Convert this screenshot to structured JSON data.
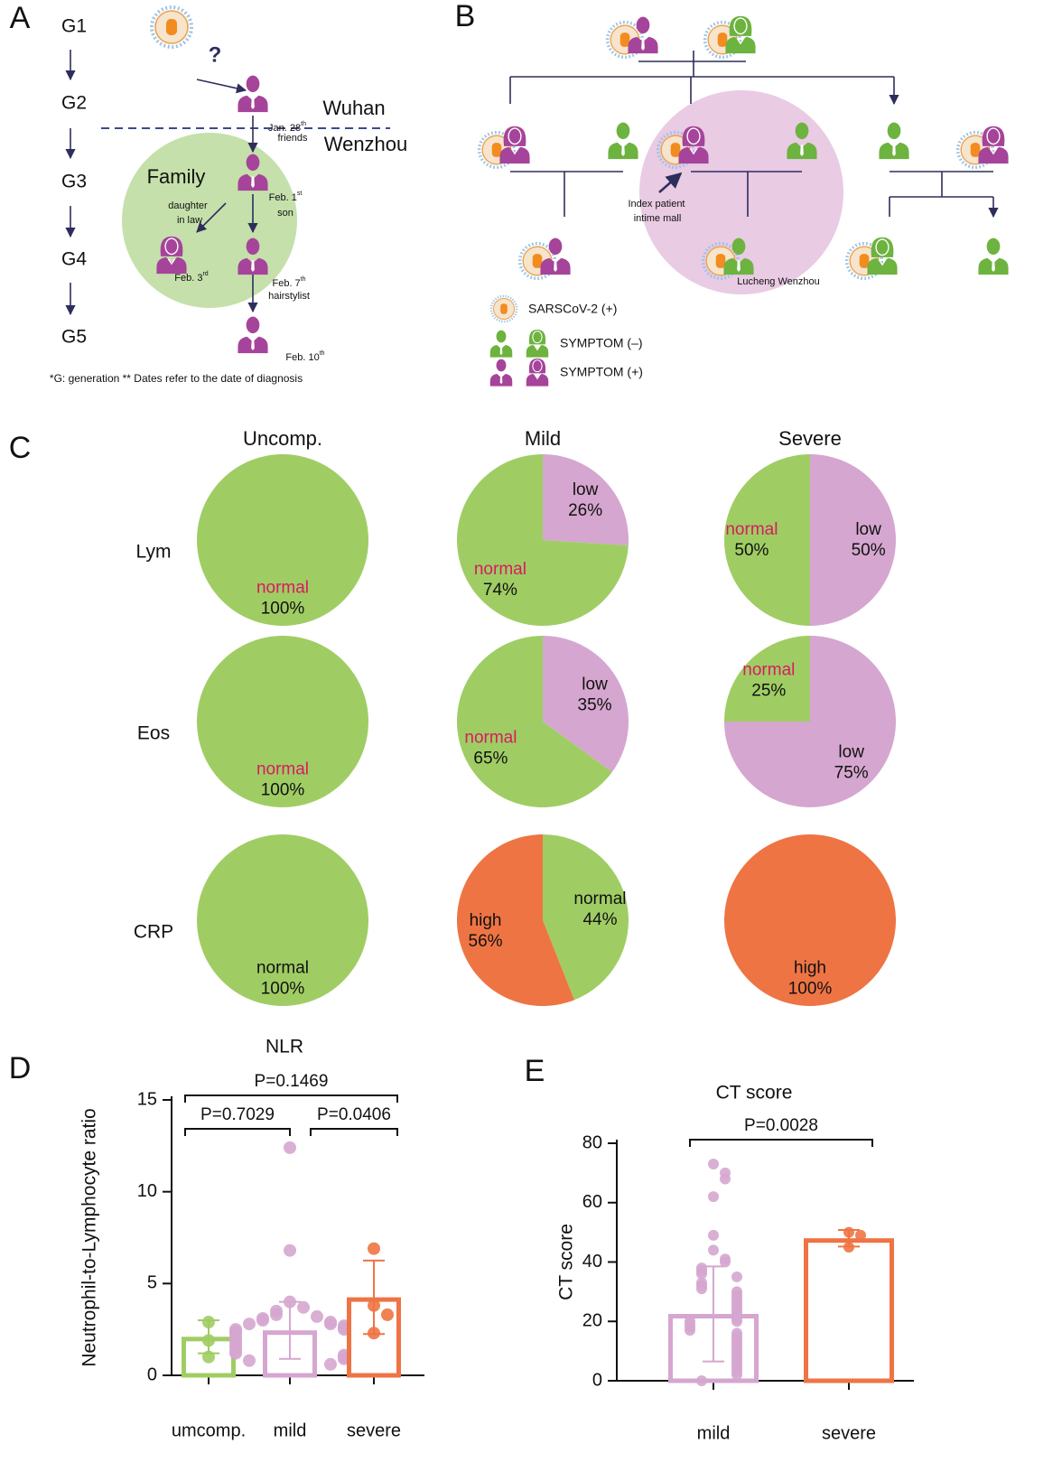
{
  "panel_a": {
    "label": "A",
    "generations": [
      "G1",
      "G2",
      "G3",
      "G4",
      "G5"
    ],
    "question": "?",
    "places": [
      "Wuhan",
      "Wenzhou"
    ],
    "family": "Family",
    "cases": [
      {
        "date": "Jan. 28",
        "sup": "th",
        "note": "friends"
      },
      {
        "date": "Feb. 1",
        "sup": "st",
        "note": "son"
      },
      {
        "date": "Feb. 3",
        "sup": "rd"
      },
      {
        "date": "Feb. 7",
        "sup": "th",
        "note": "hairstylist"
      },
      {
        "date": "Feb. 10",
        "sup": "th"
      }
    ],
    "relation": [
      "daughter",
      "in law"
    ],
    "footnote": "*G: generation ** Dates refer to the date of diagnosis"
  },
  "panel_b": {
    "label": "B",
    "index_patient": [
      "Index patient",
      "intime mall"
    ],
    "location": "Lucheng Wenzhou",
    "legend": [
      "SARSCoV-2 (+)",
      "SYMPTOM (–)",
      "SYMPTOM (+)"
    ]
  },
  "panel_c": {
    "label": "C",
    "columns": [
      "Uncomp.",
      "Mild",
      "Severe"
    ],
    "rows": [
      "Lym",
      "Eos",
      "CRP"
    ]
  },
  "chart_data": [
    {
      "type": "pie",
      "categories": [
        "normal"
      ],
      "values": [
        100
      ],
      "value_labels": [
        "100%"
      ],
      "colors": [
        "#9fcd64"
      ],
      "label_colors": [
        "#d81b60"
      ]
    },
    {
      "type": "pie",
      "categories": [
        "low",
        "normal"
      ],
      "values": [
        26,
        74
      ],
      "value_labels": [
        "26%",
        "74%"
      ],
      "colors": [
        "#d5a6cf",
        "#9fcd64"
      ],
      "label_colors": [
        "#111111",
        "#d81b60"
      ]
    },
    {
      "type": "pie",
      "categories": [
        "low",
        "normal"
      ],
      "values": [
        50,
        50
      ],
      "value_labels": [
        "50%",
        "50%"
      ],
      "colors": [
        "#d5a6cf",
        "#9fcd64"
      ],
      "label_colors": [
        "#111111",
        "#d81b60"
      ]
    },
    {
      "type": "pie",
      "categories": [
        "normal"
      ],
      "values": [
        100
      ],
      "value_labels": [
        "100%"
      ],
      "colors": [
        "#9fcd64"
      ],
      "label_colors": [
        "#d81b60"
      ]
    },
    {
      "type": "pie",
      "categories": [
        "low",
        "normal"
      ],
      "values": [
        35,
        65
      ],
      "value_labels": [
        "35%",
        "65%"
      ],
      "colors": [
        "#d5a6cf",
        "#9fcd64"
      ],
      "label_colors": [
        "#111111",
        "#d81b60"
      ]
    },
    {
      "type": "pie",
      "categories": [
        "low",
        "normal"
      ],
      "values": [
        75,
        25
      ],
      "value_labels": [
        "75%",
        "25%"
      ],
      "colors": [
        "#d5a6cf",
        "#9fcd64"
      ],
      "label_colors": [
        "#111111",
        "#d81b60"
      ]
    },
    {
      "type": "pie",
      "categories": [
        "normal"
      ],
      "values": [
        100
      ],
      "value_labels": [
        "100%"
      ],
      "colors": [
        "#9fcd64"
      ],
      "label_colors": [
        "#111111"
      ]
    },
    {
      "type": "pie",
      "categories": [
        "normal",
        "high"
      ],
      "values": [
        44,
        56
      ],
      "value_labels": [
        "44%",
        "56%"
      ],
      "colors": [
        "#9fcd64",
        "#ee7444"
      ],
      "label_colors": [
        "#111111",
        "#111111"
      ]
    },
    {
      "type": "pie",
      "categories": [
        "high"
      ],
      "values": [
        100
      ],
      "value_labels": [
        "100%"
      ],
      "colors": [
        "#ee7444"
      ],
      "label_colors": [
        "#111111"
      ]
    },
    {
      "type": "bar",
      "panel": "D",
      "title": "NLR",
      "y_label": "Neutrophil-to-Lymphocyte ratio",
      "categories": [
        "umcomp.",
        "mild",
        "severe"
      ],
      "values": [
        2.1,
        2.45,
        4.25
      ],
      "errors": [
        0.9,
        1.55,
        2.0
      ],
      "colors": [
        "#9fcd64",
        "#d5a6cf",
        "#ee7444"
      ],
      "points": [
        [
          2.9,
          1.9,
          1.0
        ],
        [
          12.4,
          6.8,
          4.0,
          3.7,
          3.5,
          3.3,
          3.2,
          3.1,
          3.0,
          2.9,
          2.8,
          2.8,
          2.7,
          2.6,
          2.5,
          2.5,
          2.4,
          2.3,
          2.3,
          2.2,
          2.1,
          2.0,
          2.0,
          1.9,
          1.8,
          1.8,
          1.7,
          1.6,
          1.5,
          1.5,
          1.4,
          1.3,
          1.2,
          1.1,
          1.0,
          0.9,
          0.8,
          0.6
        ],
        [
          6.9,
          3.8,
          3.3,
          2.3
        ]
      ],
      "ylim": [
        0,
        15
      ],
      "yticks": [
        0,
        5,
        10,
        15
      ],
      "comparisons": [
        {
          "groups": [
            "umcomp.",
            "severe"
          ],
          "label": "P=0.1469"
        },
        {
          "groups": [
            "umcomp.",
            "mild"
          ],
          "label": "P=0.7029"
        },
        {
          "groups": [
            "mild",
            "severe"
          ],
          "label": "P=0.0406"
        }
      ]
    },
    {
      "type": "bar",
      "panel": "E",
      "title": "CT score",
      "y_label": "CT score",
      "categories": [
        "mild",
        "severe"
      ],
      "values": [
        22.5,
        48
      ],
      "errors": [
        16,
        2.8
      ],
      "colors": [
        "#d5a6cf",
        "#ee7444"
      ],
      "points": [
        [
          73,
          70,
          68,
          62,
          49,
          44,
          41,
          40,
          38,
          37,
          36,
          35,
          33,
          32,
          31,
          30,
          29,
          28,
          27,
          26,
          25,
          24,
          23,
          22,
          21,
          20,
          20,
          19,
          18,
          17,
          16,
          15,
          14,
          13,
          12,
          11,
          10,
          9,
          8,
          7,
          6,
          5,
          4,
          3,
          2,
          0
        ],
        [
          50,
          49,
          45
        ]
      ],
      "ylim": [
        0,
        80
      ],
      "yticks": [
        0,
        20,
        40,
        60,
        80
      ],
      "comparisons": [
        {
          "groups": [
            "mild",
            "severe"
          ],
          "label": "P=0.0028"
        }
      ]
    }
  ]
}
